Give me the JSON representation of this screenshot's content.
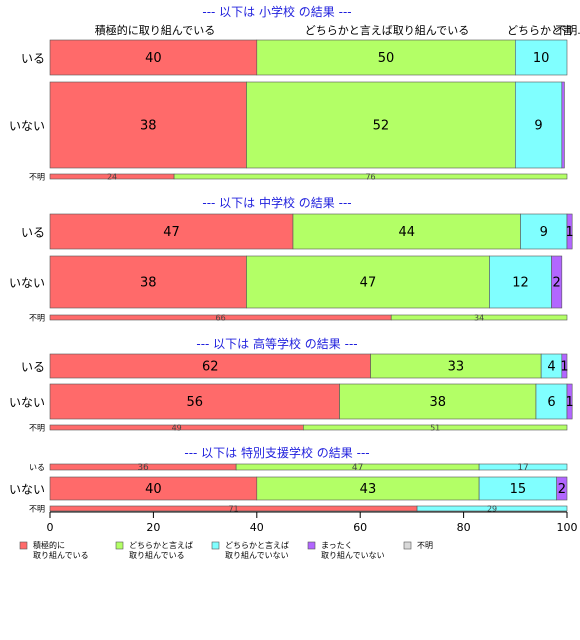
{
  "chart_data": {
    "type": "bar",
    "orientation": "horizontal-stacked-percent",
    "xlim": [
      0,
      100
    ],
    "x_ticks": [
      0,
      20,
      40,
      60,
      80,
      100
    ],
    "colors": [
      "#FF6A6A",
      "#B3FF66",
      "#80FFFF",
      "#B266FF",
      "#D9D9D9"
    ],
    "legend": {
      "placement": "bottom-left",
      "items": [
        {
          "line1": "積極的に",
          "line2": "取り組んでいる",
          "color": "#FF6A6A"
        },
        {
          "line1": "どちらかと言えば",
          "line2": "取り組んでいる",
          "color": "#B3FF66"
        },
        {
          "line1": "どちらかと言えば",
          "line2": "取り組んでいない",
          "color": "#80FFFF"
        },
        {
          "line1": "まったく",
          "line2": "取り組んでいない",
          "color": "#B266FF"
        },
        {
          "line1": "不明",
          "line2": "",
          "color": "#D9D9D9"
        }
      ]
    },
    "top_category_labels": [
      "積極的に取り組んでいる",
      "どちらかと言えば取り組んでいる",
      "どちらかと言",
      "不明."
    ],
    "panels": [
      {
        "title": "--- 以下は 小学校 の結果 ---",
        "rows": [
          {
            "label": "いる",
            "values": [
              40,
              50,
              10,
              0,
              0
            ],
            "labels": [
              "40",
              "50",
              "10",
              "",
              ""
            ]
          },
          {
            "label": "いない",
            "values": [
              38,
              52,
              9,
              0.5,
              0
            ],
            "labels": [
              "38",
              "52",
              "9",
              "",
              ""
            ]
          },
          {
            "label": "不明",
            "values": [
              24,
              76,
              0,
              0,
              0
            ],
            "labels": [
              "24",
              "76",
              "",
              "",
              ""
            ]
          }
        ]
      },
      {
        "title": "--- 以下は 中学校 の結果 ---",
        "rows": [
          {
            "label": "いる",
            "values": [
              47,
              44,
              9,
              1,
              0
            ],
            "labels": [
              "47",
              "44",
              "9",
              "1",
              ""
            ]
          },
          {
            "label": "いない",
            "values": [
              38,
              47,
              12,
              2,
              0
            ],
            "labels": [
              "38",
              "47",
              "12",
              "2",
              ""
            ]
          },
          {
            "label": "不明",
            "values": [
              66,
              34,
              0,
              0,
              0
            ],
            "labels": [
              "66",
              "34",
              "",
              "",
              ""
            ]
          }
        ]
      },
      {
        "title": "--- 以下は 高等学校 の結果 ---",
        "rows": [
          {
            "label": "いる",
            "values": [
              62,
              33,
              4,
              1,
              0
            ],
            "labels": [
              "62",
              "33",
              "4",
              "1",
              ""
            ]
          },
          {
            "label": "いない",
            "values": [
              56,
              38,
              6,
              1,
              0
            ],
            "labels": [
              "56",
              "38",
              "6",
              "1",
              ""
            ]
          },
          {
            "label": "不明",
            "values": [
              49,
              51,
              0,
              0,
              0
            ],
            "labels": [
              "49",
              "51",
              "",
              "",
              ""
            ]
          }
        ]
      },
      {
        "title": "--- 以下は 特別支援学校 の結果 ---",
        "rows": [
          {
            "label": "いる",
            "values": [
              36,
              47,
              17,
              0,
              0
            ],
            "labels": [
              "36",
              "47",
              "17",
              "",
              ""
            ]
          },
          {
            "label": "いない",
            "values": [
              40,
              43,
              15,
              2,
              0
            ],
            "labels": [
              "40",
              "43",
              "15",
              "2",
              ""
            ]
          },
          {
            "label": "不明",
            "values": [
              71,
              0,
              29,
              0,
              0
            ],
            "labels": [
              "71",
              "",
              "29",
              "",
              ""
            ]
          }
        ]
      }
    ]
  }
}
